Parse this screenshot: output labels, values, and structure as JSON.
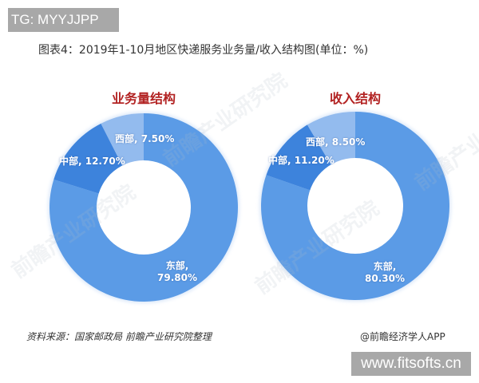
{
  "badges": {
    "top_left": "TG: MYYJJPP",
    "bottom_right": "www.fitsofts.cn"
  },
  "figure": {
    "title": "图表4：2019年1-10月地区快递服务业务量/收入结构图(单位：%)",
    "source": "资料来源：国家邮政局 前瞻产业研究院整理",
    "publisher": "@前瞻经济学人APP",
    "watermark": "前瞻产业研究院"
  },
  "colors": {
    "east": "#5b9be6",
    "central": "#3d83dc",
    "west": "#93bbee",
    "heading": "#b22222"
  },
  "charts": [
    {
      "heading": "业务量结构",
      "labels": {
        "west": "西部, 7.50%",
        "central": "中部, 12.70%",
        "east_name": "东部,",
        "east_value": "79.80%"
      }
    },
    {
      "heading": "收入结构",
      "labels": {
        "west": "西部, 8.50%",
        "central": "中部, 11.20%",
        "east_name": "东部,",
        "east_value": "80.30%"
      }
    }
  ],
  "chart_data": [
    {
      "type": "pie",
      "subtype": "donut",
      "title": "业务量结构",
      "categories": [
        "东部",
        "中部",
        "西部"
      ],
      "values": [
        79.8,
        12.7,
        7.5
      ],
      "unit": "%",
      "start_angle": "12 o'clock, clockwise",
      "legend": "none (data labels on slices)"
    },
    {
      "type": "pie",
      "subtype": "donut",
      "title": "收入结构",
      "categories": [
        "东部",
        "中部",
        "西部"
      ],
      "values": [
        80.3,
        11.2,
        8.5
      ],
      "unit": "%",
      "start_angle": "12 o'clock, clockwise",
      "legend": "none (data labels on slices)"
    }
  ]
}
